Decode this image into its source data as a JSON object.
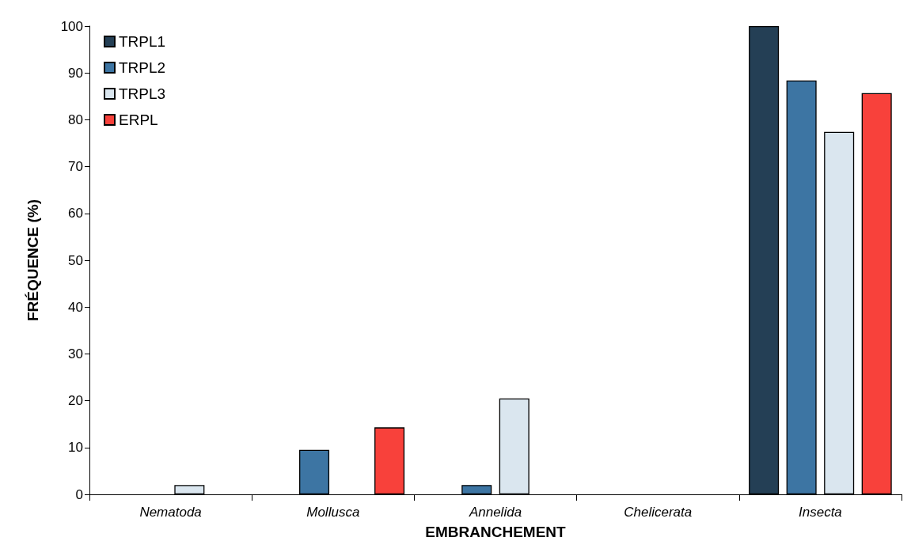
{
  "chart_data": {
    "type": "bar",
    "xlabel": "EMBRANCHEMENT",
    "ylabel": "FRÉQUENCE (%)",
    "categories": [
      "Nematoda",
      "Mollusca",
      "Annelida",
      "Chelicerata",
      "Insecta"
    ],
    "series": [
      {
        "name": "TRPL1",
        "color": "#243f55",
        "values": [
          0,
          0,
          0,
          0,
          100
        ]
      },
      {
        "name": "TRPL2",
        "color": "#3d75a3",
        "values": [
          0,
          9.5,
          2,
          0,
          88.4
        ]
      },
      {
        "name": "TRPL3",
        "color": "#dae6ef",
        "values": [
          2,
          0,
          20.5,
          0,
          77.4
        ]
      },
      {
        "name": "ERPL",
        "color": "#f8413b",
        "values": [
          0,
          14.3,
          0,
          0,
          85.7
        ]
      }
    ],
    "ylim": [
      0,
      100
    ],
    "yticks": [
      0,
      10,
      20,
      30,
      40,
      50,
      60,
      70,
      80,
      90,
      100
    ],
    "grid": false,
    "legend": "top left"
  }
}
